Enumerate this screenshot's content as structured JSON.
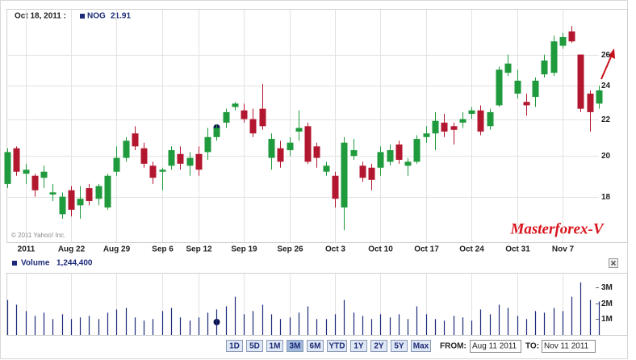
{
  "header": {
    "date": "Oct 18, 2011 :",
    "symbol": "NOG",
    "price": 21.91
  },
  "chart_data": [
    {
      "type": "candlestick",
      "log": true,
      "grid": true,
      "up_color": "#1f9a3c",
      "down_color": "#b3172f",
      "annotation": "Masterforex-V",
      "credit": "© 2011 Yahoo! Inc.",
      "categories": [
        null,
        null,
        "2011",
        null,
        null,
        null,
        null,
        "Aug 22",
        null,
        null,
        null,
        null,
        "Aug 29",
        null,
        null,
        null,
        null,
        "Sep 6",
        null,
        null,
        null,
        "Sep 12",
        null,
        null,
        null,
        null,
        "Sep 19",
        null,
        null,
        null,
        null,
        "Sep 26",
        null,
        null,
        null,
        null,
        "Oct 3",
        null,
        null,
        null,
        null,
        "Oct 10",
        null,
        null,
        null,
        null,
        "Oct 17",
        null,
        null,
        null,
        null,
        "Oct 24",
        null,
        null,
        null,
        null,
        "Oct 31",
        null,
        null,
        null,
        null,
        "Nov 7",
        null,
        null,
        null,
        null
      ],
      "open": [
        18.6,
        20.4,
        19.1,
        19.0,
        18.9,
        18.1,
        17.2,
        18.3,
        17.6,
        18.4,
        17.9,
        17.5,
        19.2,
        19.9,
        21.2,
        20.4,
        19.5,
        19.2,
        19.5,
        20.1,
        19.5,
        20.1,
        20.2,
        21.0,
        21.8,
        22.7,
        22.5,
        22.0,
        22.6,
        19.9,
        20.4,
        20.3,
        21.3,
        21.6,
        20.5,
        19.2,
        19.0,
        17.5,
        20.0,
        19.5,
        19.4,
        19.4,
        19.7,
        20.6,
        19.5,
        19.7,
        21.0,
        21.2,
        21.8,
        21.6,
        21.8,
        22.3,
        22.5,
        21.6,
        22.8,
        24.8,
        23.5,
        23.0,
        23.3,
        24.7,
        24.8,
        26.6,
        27.6,
        26.0,
        23.5,
        22.9
      ],
      "high": [
        20.4,
        20.5,
        19.6,
        19.1,
        19.5,
        18.6,
        18.2,
        18.5,
        18.5,
        18.6,
        18.6,
        19.1,
        20.5,
        21.0,
        21.6,
        20.7,
        19.7,
        19.4,
        20.5,
        20.5,
        20.2,
        20.5,
        21.5,
        21.7,
        22.6,
        23.0,
        22.9,
        22.6,
        24.1,
        21.2,
        20.8,
        21.0,
        22.5,
        21.8,
        20.7,
        19.7,
        19.2,
        21.0,
        20.9,
        19.7,
        19.6,
        20.5,
        20.6,
        20.8,
        19.9,
        21.1,
        21.6,
        22.4,
        22.3,
        21.8,
        22.4,
        22.7,
        22.8,
        22.6,
        25.2,
        26.0,
        25.0,
        23.5,
        24.5,
        26.0,
        27.3,
        27.5,
        28.0,
        26.0,
        23.7,
        24.0
      ],
      "low": [
        18.4,
        19.0,
        18.6,
        18.0,
        18.4,
        17.8,
        17.0,
        17.1,
        17.0,
        17.6,
        17.6,
        17.4,
        19.0,
        19.7,
        20.3,
        19.4,
        18.6,
        18.3,
        19.3,
        19.3,
        19.0,
        19.0,
        19.8,
        20.8,
        21.5,
        22.5,
        21.8,
        21.0,
        21.4,
        19.3,
        19.4,
        20.0,
        20.8,
        19.6,
        19.4,
        19.0,
        17.5,
        16.5,
        19.8,
        18.7,
        18.3,
        19.0,
        19.5,
        19.6,
        19.0,
        19.6,
        20.7,
        20.3,
        21.0,
        20.6,
        21.5,
        22.0,
        21.1,
        21.4,
        22.7,
        24.6,
        23.2,
        22.2,
        22.7,
        24.5,
        24.6,
        26.4,
        26.8,
        22.4,
        21.3,
        22.6
      ],
      "close": [
        20.2,
        19.2,
        19.3,
        18.3,
        19.2,
        18.2,
        18.0,
        17.4,
        17.9,
        17.8,
        18.5,
        19.0,
        19.9,
        20.8,
        20.5,
        19.6,
        18.9,
        19.3,
        20.3,
        19.6,
        19.9,
        19.3,
        21.0,
        21.5,
        22.4,
        22.9,
        22.0,
        21.2,
        21.6,
        20.9,
        19.7,
        20.7,
        21.5,
        19.7,
        19.9,
        19.5,
        17.9,
        20.7,
        20.3,
        18.9,
        18.8,
        20.2,
        20.3,
        19.8,
        19.7,
        20.9,
        21.2,
        21.9,
        21.3,
        21.4,
        22.0,
        22.5,
        21.3,
        22.4,
        25.0,
        25.4,
        24.3,
        22.8,
        24.3,
        25.6,
        26.9,
        27.2,
        26.9,
        22.6,
        22.4,
        23.7
      ],
      "ylim": [
        16,
        29.2
      ],
      "yticks": [
        18,
        20,
        22,
        24,
        26
      ]
    },
    {
      "type": "bar",
      "title": "Volume",
      "current": "1,244,400",
      "color": "#1c2a78",
      "values": [
        2.2,
        1.9,
        1.5,
        1.2,
        1.4,
        1.0,
        1.3,
        1.0,
        1.1,
        1.2,
        1.0,
        1.4,
        1.6,
        1.7,
        1.1,
        0.9,
        1.0,
        1.5,
        1.7,
        1.1,
        0.9,
        1.1,
        1.4,
        1.6,
        1.8,
        2.4,
        1.3,
        1.5,
        1.9,
        1.3,
        1.0,
        1.1,
        1.4,
        1.8,
        1.0,
        1.0,
        1.3,
        2.2,
        1.4,
        1.2,
        1.0,
        1.3,
        1.1,
        1.3,
        1.0,
        1.8,
        1.3,
        1.0,
        0.9,
        1.2,
        1.1,
        0.9,
        1.6,
        1.3,
        1.9,
        1.7,
        1.2,
        1.0,
        1.5,
        1.4,
        1.7,
        1.5,
        2.4,
        3.3,
        2.2,
        2.1
      ],
      "ylim": [
        0,
        3.85
      ],
      "yticks": [
        {
          "value": 1,
          "label": "1M"
        },
        {
          "value": 2,
          "label": "2M"
        },
        {
          "value": 3,
          "label": "3M"
        }
      ]
    }
  ],
  "controls": {
    "ranges": [
      "1D",
      "5D",
      "1M",
      "3M",
      "6M",
      "YTD",
      "1Y",
      "2Y",
      "5Y",
      "Max"
    ],
    "selected": "3M",
    "from_label": "FROM:",
    "from": "Aug 11 2011",
    "to_label": "TO:",
    "to": "Nov 11 2011"
  }
}
